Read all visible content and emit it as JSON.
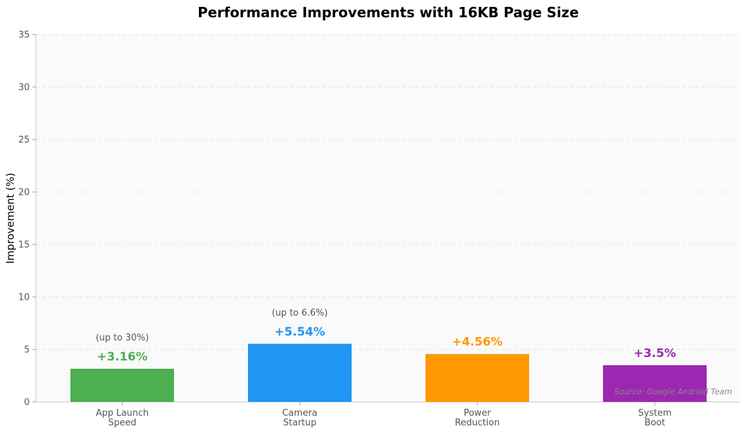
{
  "chart_data": {
    "type": "bar",
    "title": "Performance Improvements with 16KB Page Size",
    "ylabel": "Improvement (%)",
    "xlabel": "",
    "ylim": [
      0,
      35
    ],
    "yticks": [
      0,
      5,
      10,
      15,
      20,
      25,
      30,
      35
    ],
    "grid": true,
    "categories": [
      [
        "App Launch",
        "Speed"
      ],
      [
        "Camera",
        "Startup"
      ],
      [
        "Power",
        "Reduction"
      ],
      [
        "System",
        "Boot"
      ]
    ],
    "values": [
      3.16,
      5.54,
      4.56,
      3.5
    ],
    "value_labels": [
      "+3.16%",
      "+5.54%",
      "+4.56%",
      "+3.5%"
    ],
    "notes": [
      "(up to 30%)",
      "(up to 6.6%)",
      "",
      ""
    ],
    "colors": [
      "#4caf50",
      "#2196f3",
      "#ff9800",
      "#9c27b0"
    ],
    "source": "Source: Google Android Team"
  }
}
